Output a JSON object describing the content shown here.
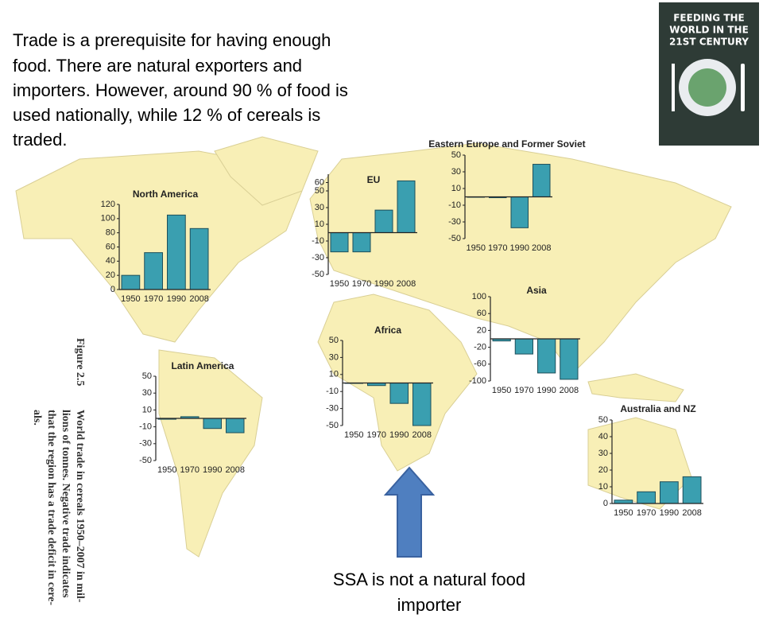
{
  "slide": {
    "text_lines": [
      "Trade is a prerequisite for having enough",
      "food. There are natural exporters and",
      "importers. However, around 90 %  of food is",
      "used nationally, while 12 % of cereals is",
      "traded."
    ],
    "callout_lines": [
      "SSA  is not a natural food",
      "importer"
    ]
  },
  "book_cover": {
    "title_lines": [
      "FEEDING THE",
      "WORLD IN THE",
      "21ST CENTURY"
    ]
  },
  "figure_caption": {
    "label": "Figure 2.5",
    "lines": [
      "World trade in cereals 1950–2007 in mil-",
      "lions of tonnes. Negative trade indicates",
      "that the region has a trade deficit in cere-",
      "als."
    ]
  },
  "chart_data": [
    {
      "type": "bar",
      "title": "North America",
      "categories": [
        "1950",
        "1970",
        "1990",
        "2008"
      ],
      "values": [
        20,
        52,
        105,
        86
      ],
      "color": "#3a9fb0",
      "ylim": [
        0,
        120
      ],
      "yticks": [
        0,
        20,
        40,
        60,
        80,
        100,
        120
      ]
    },
    {
      "type": "bar",
      "title": "EU",
      "categories": [
        "1950",
        "1970",
        "1990",
        "2008"
      ],
      "values": [
        -23,
        -23,
        27,
        62
      ],
      "color": "#3a9fb0",
      "ylim": [
        -50,
        70
      ],
      "yticks": [
        60,
        50,
        30,
        10,
        -10,
        -30,
        -50
      ]
    },
    {
      "type": "bar",
      "title": "Eastern Europe and Former Soviet",
      "categories": [
        "1950",
        "1970",
        "1990",
        "2008"
      ],
      "values": [
        0,
        -1,
        -37,
        39
      ],
      "color": "#3a9fb0",
      "ylim": [
        -50,
        50
      ],
      "yticks": [
        50,
        30,
        10,
        -10,
        -30,
        -50
      ]
    },
    {
      "type": "bar",
      "title": "Asia",
      "categories": [
        "1950",
        "1970",
        "1990",
        "2008"
      ],
      "values": [
        -5,
        -36,
        -81,
        -96
      ],
      "color": "#3a9fb0",
      "ylim": [
        -100,
        100
      ],
      "yticks": [
        100,
        60,
        20,
        -20,
        -60,
        -100
      ]
    },
    {
      "type": "bar",
      "title": "Africa",
      "categories": [
        "1950",
        "1970",
        "1990",
        "2008"
      ],
      "values": [
        0,
        -3,
        -24,
        -50
      ],
      "color": "#3a9fb0",
      "ylim": [
        -50,
        50
      ],
      "yticks": [
        50,
        30,
        10,
        -10,
        -30,
        -50
      ]
    },
    {
      "type": "bar",
      "title": "Latin America",
      "categories": [
        "1950",
        "1970",
        "1990",
        "2008"
      ],
      "values": [
        -1,
        2,
        -12,
        -17
      ],
      "color": "#3a9fb0",
      "ylim": [
        -50,
        50
      ],
      "yticks": [
        50,
        30,
        10,
        -10,
        -30,
        -50
      ]
    },
    {
      "type": "bar",
      "title": "Australia and NZ",
      "categories": [
        "1950",
        "1970",
        "1990",
        "2008"
      ],
      "values": [
        2,
        7,
        13,
        16
      ],
      "color": "#3a9fb0",
      "ylim": [
        0,
        50
      ],
      "yticks": [
        0,
        10,
        20,
        30,
        40,
        50
      ]
    }
  ]
}
